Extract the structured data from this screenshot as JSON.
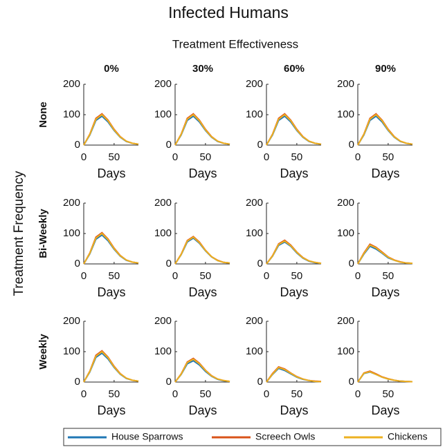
{
  "title": "Infected Humans",
  "subtitle": "Treatment Effectiveness",
  "row_axis_title": "Treatment Frequency",
  "legend": [
    {
      "name": "House Sparrows",
      "color": "#1f77b4"
    },
    {
      "name": "Screech Owls",
      "color": "#d95319"
    },
    {
      "name": "Chickens",
      "color": "#edb120"
    }
  ],
  "chart_data": [
    {
      "type": "line",
      "title": "0%",
      "ylabel": "None",
      "xlabel": "Days",
      "x": [
        0,
        10,
        20,
        30,
        40,
        50,
        60,
        70,
        80,
        90
      ],
      "xlim": [
        0,
        90
      ],
      "ylim": [
        0,
        200
      ],
      "xticks": [
        0,
        50
      ],
      "yticks": [
        0,
        100,
        200
      ],
      "series": [
        {
          "values": [
            0,
            33,
            81,
            95,
            76,
            48,
            26,
            12,
            6,
            3
          ]
        },
        {
          "values": [
            0,
            36,
            88,
            103,
            82,
            52,
            28,
            13,
            6,
            3
          ]
        },
        {
          "values": [
            0,
            35,
            85,
            100,
            80,
            50,
            27,
            13,
            6,
            3
          ]
        }
      ]
    },
    {
      "type": "line",
      "title": "30%",
      "xlabel": "Days",
      "x": [
        0,
        10,
        20,
        30,
        40,
        50,
        60,
        70,
        80,
        90
      ],
      "xlim": [
        0,
        90
      ],
      "ylim": [
        0,
        200
      ],
      "xticks": [
        0,
        50
      ],
      "yticks": [
        0,
        100,
        200
      ],
      "series": [
        {
          "values": [
            0,
            33,
            81,
            95,
            76,
            48,
            26,
            12,
            6,
            3
          ]
        },
        {
          "values": [
            0,
            36,
            88,
            103,
            82,
            52,
            28,
            13,
            6,
            3
          ]
        },
        {
          "values": [
            0,
            35,
            85,
            100,
            80,
            50,
            27,
            13,
            6,
            3
          ]
        }
      ]
    },
    {
      "type": "line",
      "title": "60%",
      "xlabel": "Days",
      "x": [
        0,
        10,
        20,
        30,
        40,
        50,
        60,
        70,
        80,
        90
      ],
      "xlim": [
        0,
        90
      ],
      "ylim": [
        0,
        200
      ],
      "xticks": [
        0,
        50
      ],
      "yticks": [
        0,
        100,
        200
      ],
      "series": [
        {
          "values": [
            0,
            33,
            81,
            95,
            76,
            48,
            26,
            12,
            6,
            3
          ]
        },
        {
          "values": [
            0,
            36,
            88,
            103,
            82,
            52,
            28,
            13,
            6,
            3
          ]
        },
        {
          "values": [
            0,
            35,
            85,
            100,
            80,
            50,
            27,
            13,
            6,
            3
          ]
        }
      ]
    },
    {
      "type": "line",
      "title": "90%",
      "xlabel": "Days",
      "x": [
        0,
        10,
        20,
        30,
        40,
        50,
        60,
        70,
        80,
        90
      ],
      "xlim": [
        0,
        90
      ],
      "ylim": [
        0,
        200
      ],
      "xticks": [
        0,
        50
      ],
      "yticks": [
        0,
        100,
        200
      ],
      "series": [
        {
          "values": [
            0,
            33,
            81,
            95,
            76,
            48,
            26,
            12,
            6,
            3
          ]
        },
        {
          "values": [
            0,
            36,
            88,
            103,
            82,
            52,
            28,
            13,
            6,
            3
          ]
        },
        {
          "values": [
            0,
            35,
            85,
            100,
            80,
            50,
            27,
            13,
            6,
            3
          ]
        }
      ]
    },
    {
      "type": "line",
      "ylabel": "Bi-Weekly",
      "xlabel": "Days",
      "x": [
        0,
        10,
        20,
        30,
        40,
        50,
        60,
        70,
        80,
        90
      ],
      "xlim": [
        0,
        90
      ],
      "ylim": [
        0,
        200
      ],
      "xticks": [
        0,
        50
      ],
      "yticks": [
        0,
        100,
        200
      ],
      "series": [
        {
          "values": [
            0,
            33,
            81,
            95,
            76,
            48,
            26,
            12,
            6,
            3
          ]
        },
        {
          "values": [
            0,
            36,
            88,
            103,
            82,
            52,
            28,
            13,
            6,
            3
          ]
        },
        {
          "values": [
            0,
            35,
            85,
            100,
            80,
            50,
            27,
            13,
            6,
            3
          ]
        }
      ]
    },
    {
      "type": "line",
      "xlabel": "Days",
      "x": [
        0,
        10,
        20,
        30,
        40,
        50,
        60,
        70,
        80,
        90
      ],
      "xlim": [
        0,
        90
      ],
      "ylim": [
        0,
        200
      ],
      "xticks": [
        0,
        50
      ],
      "yticks": [
        0,
        100,
        200
      ],
      "series": [
        {
          "values": [
            0,
            30,
            72,
            85,
            68,
            43,
            23,
            11,
            5,
            3
          ]
        },
        {
          "values": [
            0,
            32,
            77,
            90,
            72,
            45,
            24,
            12,
            5,
            3
          ]
        },
        {
          "values": [
            0,
            31,
            75,
            88,
            70,
            44,
            24,
            11,
            5,
            3
          ]
        }
      ]
    },
    {
      "type": "line",
      "xlabel": "Days",
      "x": [
        0,
        10,
        20,
        30,
        40,
        50,
        60,
        70,
        80,
        90
      ],
      "xlim": [
        0,
        90
      ],
      "ylim": [
        0,
        200
      ],
      "xticks": [
        0,
        50
      ],
      "yticks": [
        0,
        100,
        200
      ],
      "series": [
        {
          "values": [
            0,
            25,
            61,
            72,
            58,
            36,
            19,
            9,
            4,
            2
          ]
        },
        {
          "values": [
            0,
            27,
            66,
            78,
            62,
            39,
            21,
            10,
            5,
            2
          ]
        },
        {
          "values": [
            0,
            26,
            64,
            75,
            60,
            38,
            20,
            10,
            5,
            2
          ]
        }
      ]
    },
    {
      "type": "line",
      "xlabel": "Days",
      "x": [
        0,
        10,
        20,
        30,
        40,
        50,
        60,
        70,
        80,
        90
      ],
      "xlim": [
        0,
        90
      ],
      "ylim": [
        0,
        200
      ],
      "xticks": [
        0,
        50
      ],
      "yticks": [
        0,
        100,
        200
      ],
      "series": [
        {
          "values": [
            0,
            32,
            58,
            49,
            35,
            20,
            12,
            6,
            3,
            2
          ]
        },
        {
          "values": [
            0,
            36,
            65,
            55,
            39,
            23,
            13,
            7,
            3,
            2
          ]
        },
        {
          "values": [
            0,
            34,
            62,
            53,
            37,
            22,
            12,
            6,
            3,
            2
          ]
        }
      ]
    },
    {
      "type": "line",
      "ylabel": "Weekly",
      "xlabel": "Days",
      "x": [
        0,
        10,
        20,
        30,
        40,
        50,
        60,
        70,
        80,
        90
      ],
      "xlim": [
        0,
        90
      ],
      "ylim": [
        0,
        200
      ],
      "xticks": [
        0,
        50
      ],
      "yticks": [
        0,
        100,
        200
      ],
      "series": [
        {
          "values": [
            0,
            33,
            81,
            95,
            76,
            48,
            26,
            12,
            6,
            3
          ]
        },
        {
          "values": [
            0,
            36,
            88,
            103,
            82,
            52,
            28,
            13,
            6,
            3
          ]
        },
        {
          "values": [
            0,
            35,
            85,
            100,
            80,
            50,
            27,
            13,
            6,
            3
          ]
        }
      ]
    },
    {
      "type": "line",
      "xlabel": "Days",
      "x": [
        0,
        10,
        20,
        30,
        40,
        50,
        60,
        70,
        80,
        90
      ],
      "xlim": [
        0,
        90
      ],
      "ylim": [
        0,
        200
      ],
      "xticks": [
        0,
        50
      ],
      "yticks": [
        0,
        100,
        200
      ],
      "series": [
        {
          "values": [
            0,
            25,
            60,
            70,
            56,
            35,
            19,
            9,
            4,
            2
          ]
        },
        {
          "values": [
            0,
            27,
            66,
            78,
            62,
            39,
            21,
            10,
            5,
            2
          ]
        },
        {
          "values": [
            0,
            26,
            64,
            75,
            60,
            38,
            20,
            10,
            5,
            2
          ]
        }
      ]
    },
    {
      "type": "line",
      "xlabel": "Days",
      "x": [
        0,
        10,
        20,
        30,
        40,
        50,
        60,
        70,
        80,
        90
      ],
      "xlim": [
        0,
        90
      ],
      "ylim": [
        0,
        200
      ],
      "xticks": [
        0,
        50
      ],
      "yticks": [
        0,
        100,
        200
      ],
      "series": [
        {
          "values": [
            0,
            25,
            45,
            38,
            27,
            16,
            9,
            5,
            2,
            1
          ]
        },
        {
          "values": [
            0,
            28,
            50,
            43,
            30,
            18,
            10,
            5,
            3,
            2
          ]
        },
        {
          "values": [
            0,
            26,
            48,
            41,
            29,
            17,
            10,
            5,
            2,
            1
          ]
        }
      ]
    },
    {
      "type": "line",
      "xlabel": "Days",
      "x": [
        0,
        10,
        20,
        30,
        40,
        50,
        60,
        70,
        80,
        90
      ],
      "xlim": [
        0,
        90
      ],
      "ylim": [
        0,
        200
      ],
      "xticks": [
        0,
        50
      ],
      "yticks": [
        0,
        100,
        200
      ],
      "series": [
        {
          "values": [
            0,
            28,
            33,
            25,
            16,
            10,
            6,
            3,
            2,
            1
          ]
        },
        {
          "values": [
            0,
            30,
            36,
            27,
            17,
            11,
            6,
            3,
            2,
            1
          ]
        },
        {
          "values": [
            0,
            29,
            34,
            25,
            16,
            10,
            6,
            3,
            2,
            1
          ]
        }
      ]
    }
  ]
}
